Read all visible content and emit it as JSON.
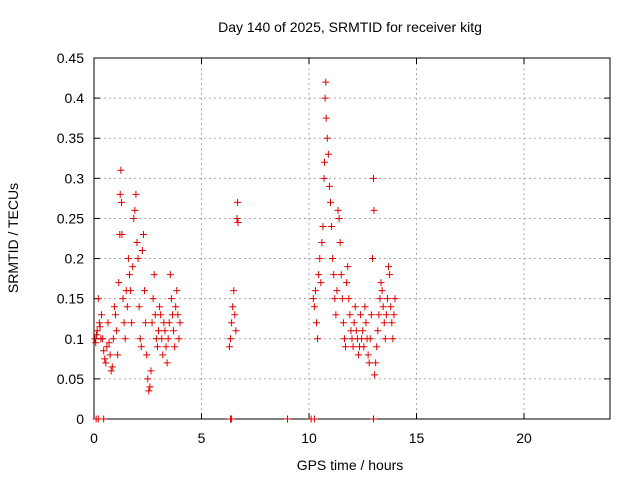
{
  "chart_data": {
    "type": "scatter",
    "title": "Day 140 of 2025, SRMTID for receiver kitg",
    "xlabel": "GPS time / hours",
    "ylabel": "SRMTID / TECUs",
    "xlim": [
      0,
      24
    ],
    "ylim": [
      0,
      0.45
    ],
    "x_ticks": [
      0,
      5,
      10,
      15,
      20
    ],
    "y_ticks": [
      0,
      0.05,
      0.1,
      0.15,
      0.2,
      0.25,
      0.3,
      0.35,
      0.4,
      0.45
    ],
    "x_tick_labels": [
      "0",
      "5",
      "10",
      "15",
      "20"
    ],
    "y_tick_labels": [
      "0",
      "0.05",
      "0.1",
      "0.15",
      "0.2",
      "0.25",
      "0.3",
      "0.35",
      "0.4",
      "0.45"
    ],
    "grid": true,
    "marker": "+",
    "color": "#e00000",
    "series": [
      {
        "name": "SRMTID",
        "points": [
          [
            0.05,
            0.1
          ],
          [
            0.08,
            0.095
          ],
          [
            0.12,
            0.105
          ],
          [
            0.15,
            0.11
          ],
          [
            0.2,
            0.15
          ],
          [
            0.25,
            0.12
          ],
          [
            0.28,
            0.115
          ],
          [
            0.32,
            0.1
          ],
          [
            0.35,
            0.13
          ],
          [
            0.4,
            0.1
          ],
          [
            0.45,
            0.085
          ],
          [
            0.5,
            0.075
          ],
          [
            0.55,
            0.07
          ],
          [
            0.6,
            0.09
          ],
          [
            0.65,
            0.12
          ],
          [
            0.7,
            0.095
          ],
          [
            0.75,
            0.08
          ],
          [
            0.8,
            0.06
          ],
          [
            0.85,
            0.065
          ],
          [
            0.9,
            0.1
          ],
          [
            0.95,
            0.14
          ],
          [
            1.0,
            0.13
          ],
          [
            1.05,
            0.11
          ],
          [
            1.1,
            0.08
          ],
          [
            1.15,
            0.17
          ],
          [
            1.2,
            0.23
          ],
          [
            1.22,
            0.28
          ],
          [
            1.25,
            0.31
          ],
          [
            1.28,
            0.27
          ],
          [
            1.3,
            0.23
          ],
          [
            1.35,
            0.15
          ],
          [
            1.4,
            0.12
          ],
          [
            1.45,
            0.1
          ],
          [
            1.5,
            0.16
          ],
          [
            1.55,
            0.14
          ],
          [
            1.6,
            0.2
          ],
          [
            1.65,
            0.18
          ],
          [
            1.7,
            0.16
          ],
          [
            1.75,
            0.12
          ],
          [
            1.8,
            0.19
          ],
          [
            1.85,
            0.25
          ],
          [
            1.9,
            0.26
          ],
          [
            1.95,
            0.28
          ],
          [
            2.0,
            0.22
          ],
          [
            2.05,
            0.2
          ],
          [
            2.1,
            0.14
          ],
          [
            2.15,
            0.1
          ],
          [
            2.2,
            0.09
          ],
          [
            2.25,
            0.21
          ],
          [
            2.3,
            0.23
          ],
          [
            2.35,
            0.16
          ],
          [
            2.4,
            0.12
          ],
          [
            2.45,
            0.08
          ],
          [
            2.5,
            0.05
          ],
          [
            2.55,
            0.035
          ],
          [
            2.6,
            0.04
          ],
          [
            2.65,
            0.06
          ],
          [
            2.7,
            0.12
          ],
          [
            2.75,
            0.15
          ],
          [
            2.8,
            0.18
          ],
          [
            2.85,
            0.13
          ],
          [
            2.9,
            0.1
          ],
          [
            2.95,
            0.09
          ],
          [
            3.0,
            0.11
          ],
          [
            3.05,
            0.14
          ],
          [
            3.1,
            0.13
          ],
          [
            3.15,
            0.1
          ],
          [
            3.2,
            0.08
          ],
          [
            3.25,
            0.12
          ],
          [
            3.3,
            0.11
          ],
          [
            3.35,
            0.09
          ],
          [
            3.4,
            0.07
          ],
          [
            3.45,
            0.1
          ],
          [
            3.5,
            0.12
          ],
          [
            3.55,
            0.18
          ],
          [
            3.6,
            0.15
          ],
          [
            3.65,
            0.13
          ],
          [
            3.7,
            0.11
          ],
          [
            3.75,
            0.09
          ],
          [
            3.8,
            0.14
          ],
          [
            3.85,
            0.16
          ],
          [
            3.9,
            0.13
          ],
          [
            3.95,
            0.1
          ],
          [
            4.0,
            0.12
          ],
          [
            6.3,
            0.09
          ],
          [
            6.35,
            0.1
          ],
          [
            6.4,
            0.12
          ],
          [
            6.45,
            0.14
          ],
          [
            6.5,
            0.16
          ],
          [
            6.55,
            0.13
          ],
          [
            6.6,
            0.11
          ],
          [
            6.65,
            0.25
          ],
          [
            6.68,
            0.27
          ],
          [
            6.7,
            0.245
          ],
          [
            10.2,
            0.15
          ],
          [
            10.25,
            0.14
          ],
          [
            10.3,
            0.16
          ],
          [
            10.35,
            0.12
          ],
          [
            10.4,
            0.1
          ],
          [
            10.45,
            0.18
          ],
          [
            10.5,
            0.2
          ],
          [
            10.55,
            0.17
          ],
          [
            10.6,
            0.22
          ],
          [
            10.65,
            0.24
          ],
          [
            10.7,
            0.3
          ],
          [
            10.72,
            0.32
          ],
          [
            10.75,
            0.4
          ],
          [
            10.78,
            0.42
          ],
          [
            10.8,
            0.375
          ],
          [
            10.85,
            0.35
          ],
          [
            10.9,
            0.33
          ],
          [
            10.95,
            0.29
          ],
          [
            11.0,
            0.27
          ],
          [
            11.05,
            0.24
          ],
          [
            11.1,
            0.2
          ],
          [
            11.15,
            0.18
          ],
          [
            11.2,
            0.15
          ],
          [
            11.25,
            0.13
          ],
          [
            11.3,
            0.16
          ],
          [
            11.35,
            0.26
          ],
          [
            11.4,
            0.25
          ],
          [
            11.45,
            0.22
          ],
          [
            11.5,
            0.18
          ],
          [
            11.55,
            0.15
          ],
          [
            11.6,
            0.12
          ],
          [
            11.65,
            0.1
          ],
          [
            11.7,
            0.09
          ],
          [
            11.75,
            0.17
          ],
          [
            11.8,
            0.19
          ],
          [
            11.85,
            0.15
          ],
          [
            11.9,
            0.13
          ],
          [
            11.95,
            0.11
          ],
          [
            12.0,
            0.1
          ],
          [
            12.05,
            0.09
          ],
          [
            12.1,
            0.12
          ],
          [
            12.15,
            0.14
          ],
          [
            12.2,
            0.11
          ],
          [
            12.25,
            0.1
          ],
          [
            12.3,
            0.08
          ],
          [
            12.35,
            0.09
          ],
          [
            12.4,
            0.13
          ],
          [
            12.45,
            0.1
          ],
          [
            12.5,
            0.11
          ],
          [
            12.55,
            0.09
          ],
          [
            12.6,
            0.14
          ],
          [
            12.65,
            0.12
          ],
          [
            12.7,
            0.1
          ],
          [
            12.75,
            0.08
          ],
          [
            12.8,
            0.07
          ],
          [
            12.85,
            0.1
          ],
          [
            12.9,
            0.13
          ],
          [
            12.95,
            0.2
          ],
          [
            13.0,
            0.3
          ],
          [
            13.02,
            0.26
          ],
          [
            13.05,
            0.055
          ],
          [
            13.1,
            0.07
          ],
          [
            13.15,
            0.09
          ],
          [
            13.2,
            0.11
          ],
          [
            13.25,
            0.13
          ],
          [
            13.3,
            0.15
          ],
          [
            13.35,
            0.17
          ],
          [
            13.4,
            0.16
          ],
          [
            13.45,
            0.14
          ],
          [
            13.5,
            0.12
          ],
          [
            13.55,
            0.1
          ],
          [
            13.6,
            0.13
          ],
          [
            13.65,
            0.15
          ],
          [
            13.7,
            0.19
          ],
          [
            13.75,
            0.18
          ],
          [
            13.8,
            0.14
          ],
          [
            13.85,
            0.12
          ],
          [
            13.9,
            0.1
          ],
          [
            13.95,
            0.13
          ],
          [
            14.0,
            0.15
          ],
          [
            0.1,
            0.0
          ],
          [
            0.2,
            0.0
          ],
          [
            0.45,
            0.0
          ],
          [
            6.35,
            0.0
          ],
          [
            6.4,
            0.0
          ],
          [
            9.0,
            0.0
          ],
          [
            10.1,
            0.0
          ],
          [
            10.25,
            0.0
          ],
          [
            13.0,
            0.0
          ]
        ]
      }
    ]
  }
}
